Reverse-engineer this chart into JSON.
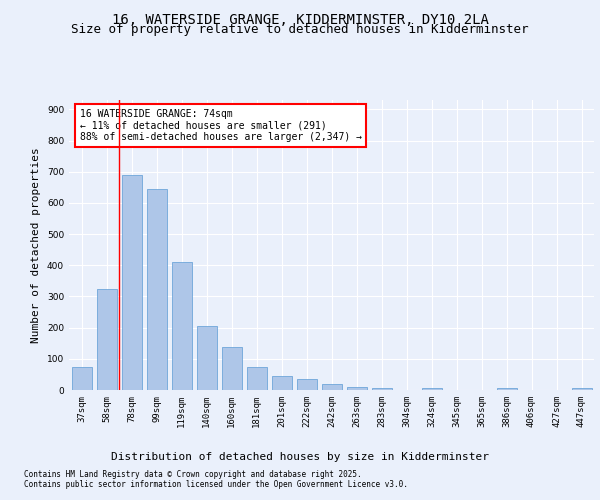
{
  "title1": "16, WATERSIDE GRANGE, KIDDERMINSTER, DY10 2LA",
  "title2": "Size of property relative to detached houses in Kidderminster",
  "xlabel": "Distribution of detached houses by size in Kidderminster",
  "ylabel": "Number of detached properties",
  "categories": [
    "37sqm",
    "58sqm",
    "78sqm",
    "99sqm",
    "119sqm",
    "140sqm",
    "160sqm",
    "181sqm",
    "201sqm",
    "222sqm",
    "242sqm",
    "263sqm",
    "283sqm",
    "304sqm",
    "324sqm",
    "345sqm",
    "365sqm",
    "386sqm",
    "406sqm",
    "427sqm",
    "447sqm"
  ],
  "values": [
    75,
    325,
    690,
    645,
    410,
    205,
    138,
    73,
    46,
    34,
    20,
    10,
    7,
    0,
    5,
    0,
    0,
    5,
    0,
    0,
    5
  ],
  "bar_color": "#aec6e8",
  "bar_edge_color": "#5b9bd5",
  "vline_x": 1.5,
  "vline_color": "red",
  "annotation_text": "16 WATERSIDE GRANGE: 74sqm\n← 11% of detached houses are smaller (291)\n88% of semi-detached houses are larger (2,347) →",
  "annotation_box_color": "white",
  "annotation_box_edgecolor": "red",
  "ylim": [
    0,
    930
  ],
  "yticks": [
    0,
    100,
    200,
    300,
    400,
    500,
    600,
    700,
    800,
    900
  ],
  "footer1": "Contains HM Land Registry data © Crown copyright and database right 2025.",
  "footer2": "Contains public sector information licensed under the Open Government Licence v3.0.",
  "bg_color": "#eaf0fb",
  "plot_bg_color": "#eaf0fb",
  "title_fontsize": 10,
  "subtitle_fontsize": 9,
  "tick_fontsize": 6.5,
  "ylabel_fontsize": 8,
  "xlabel_fontsize": 8,
  "annotation_fontsize": 7,
  "footer_fontsize": 5.5
}
